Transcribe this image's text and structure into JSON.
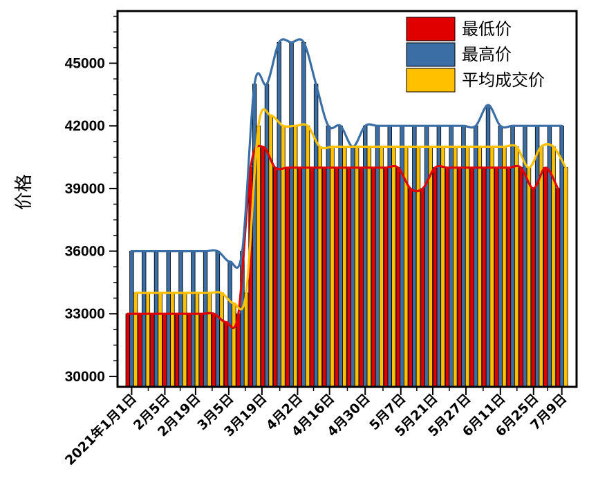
{
  "chart_data": {
    "type": "bar",
    "ylabel": "价格",
    "xlabel": "",
    "ylim": [
      29500,
      47500
    ],
    "y_ticks": [
      30000,
      33000,
      36000,
      39000,
      42000,
      45000
    ],
    "x_tick_labels": [
      "2021年1月1日",
      "2月5日",
      "2月19日",
      "3月5日",
      "3月19日",
      "4月2日",
      "4月16日",
      "4月30日",
      "5月7日",
      "5月21日",
      "5月27日",
      "6月11日",
      "6月25日",
      "7月9日"
    ],
    "x_tick_label_positions": [
      0,
      2.7,
      5.2,
      7.9,
      10.6,
      13.5,
      16.1,
      19.0,
      21.9,
      24.5,
      27.2,
      30.0,
      32.7,
      35.0
    ],
    "legend_position": "top-right",
    "grid": false,
    "series": [
      {
        "name": "最低价",
        "color": "#e00000",
        "values": [
          33000,
          33000,
          33000,
          33000,
          33000,
          33000,
          33000,
          33000,
          32600,
          33000,
          40000,
          41000,
          40000,
          40000,
          40000,
          40000,
          40000,
          40000,
          40000,
          40000,
          40000,
          40000,
          40000,
          39000,
          39000,
          40000,
          40000,
          40000,
          40000,
          40000,
          40000,
          40000,
          40000,
          39000,
          40000,
          39000
        ]
      },
      {
        "name": "最高价",
        "color": "#3a6ea5",
        "values": [
          36000,
          36000,
          36000,
          36000,
          36000,
          36000,
          36000,
          36000,
          35500,
          36000,
          44000,
          44000,
          46000,
          46000,
          46000,
          44000,
          42000,
          42000,
          41000,
          42000,
          42000,
          42000,
          42000,
          42000,
          42000,
          42000,
          42000,
          42000,
          42000,
          43000,
          42000,
          42000,
          42000,
          42000,
          42000,
          42000
        ]
      },
      {
        "name": "平均成交价",
        "color": "#ffc000",
        "values": [
          34000,
          34000,
          34000,
          34000,
          34000,
          34000,
          34000,
          34000,
          33500,
          34000,
          42000,
          42500,
          42000,
          42000,
          42000,
          41000,
          41000,
          41000,
          41000,
          41000,
          41000,
          41000,
          41000,
          41000,
          41000,
          41000,
          41000,
          41000,
          41000,
          41000,
          41000,
          41000,
          40000,
          41000,
          41000,
          40000
        ]
      }
    ]
  }
}
